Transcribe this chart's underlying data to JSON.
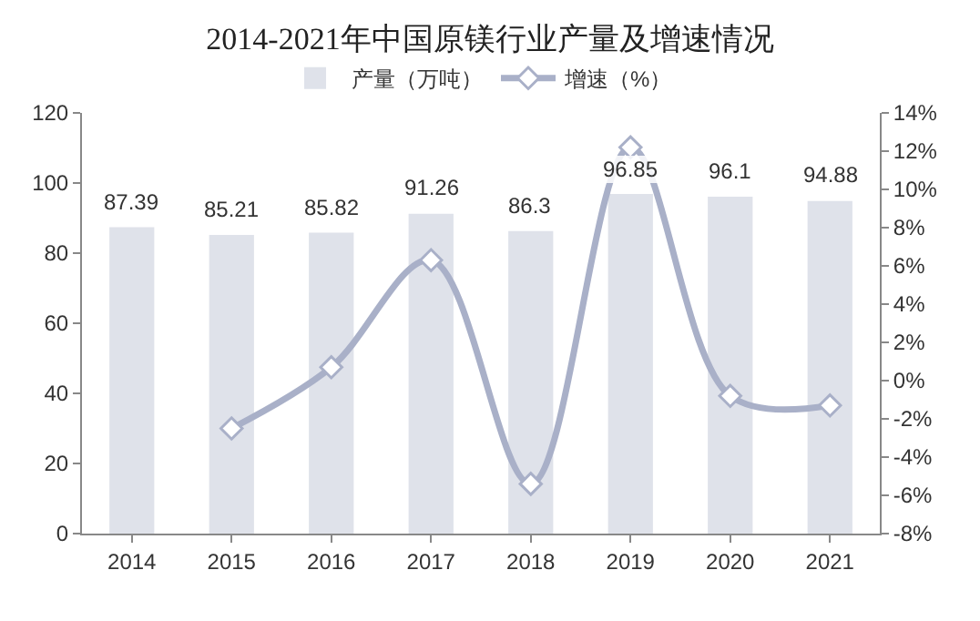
{
  "chart_data": {
    "type": "bar",
    "title": "2014-2021年中国原镁行业产量及增速情况",
    "categories": [
      "2014",
      "2015",
      "2016",
      "2017",
      "2018",
      "2019",
      "2020",
      "2021"
    ],
    "series": [
      {
        "name": "产量（万吨）",
        "color": "#dfe2ea",
        "values": [
          87.39,
          85.21,
          85.82,
          91.26,
          86.3,
          96.85,
          96.1,
          94.88
        ],
        "data_labels": true
      },
      {
        "name": "增速（%）",
        "type": "line",
        "axis": "y2",
        "color": "#a9b0c8",
        "marker": "diamond",
        "values": [
          null,
          -2.5,
          0.7,
          6.3,
          -5.4,
          12.2,
          -0.8,
          -1.3
        ]
      }
    ],
    "ylim": [
      0,
      120
    ],
    "yticks": [
      0,
      20,
      40,
      60,
      80,
      100,
      120
    ],
    "y2lim": [
      -8,
      14
    ],
    "y2ticks": [
      {
        "value": -8,
        "label": "-8%"
      },
      {
        "value": -6,
        "label": "-6%"
      },
      {
        "value": -4,
        "label": "-4%"
      },
      {
        "value": -2,
        "label": "-2%"
      },
      {
        "value": 0,
        "label": "0%"
      },
      {
        "value": 2,
        "label": "2%"
      },
      {
        "value": 4,
        "label": "4%"
      },
      {
        "value": 6,
        "label": "6%"
      },
      {
        "value": 8,
        "label": "8%"
      },
      {
        "value": 10,
        "label": "10%"
      },
      {
        "value": 12,
        "label": "12%"
      },
      {
        "value": 14,
        "label": "14%"
      }
    ],
    "grid": false,
    "legend": "top"
  }
}
